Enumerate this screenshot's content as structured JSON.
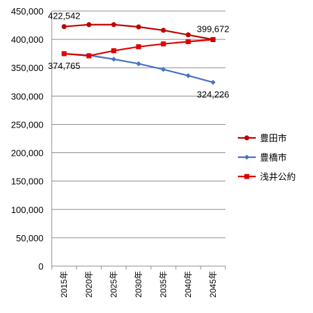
{
  "chart_data": {
    "type": "line",
    "categories": [
      "2015年",
      "2020年",
      "2025年",
      "2030年",
      "2035年",
      "2040年",
      "2045年"
    ],
    "ylim": [
      0,
      450000
    ],
    "yticks": [
      0,
      50000,
      100000,
      150000,
      200000,
      250000,
      300000,
      350000,
      400000,
      450000
    ],
    "ytick_labels": [
      "0",
      "50,000",
      "100,000",
      "150,000",
      "200,000",
      "250,000",
      "300,000",
      "350,000",
      "400,000",
      "450,000"
    ],
    "grid": true,
    "legend_position": "right",
    "series": [
      {
        "name": "豊田市",
        "color": "#C00000",
        "marker": "circle",
        "values": [
          422542,
          426000,
          426000,
          422000,
          416000,
          408000,
          399672
        ]
      },
      {
        "name": "豊橋市",
        "color": "#4472C4",
        "marker": "diamond",
        "values": [
          374765,
          372000,
          365000,
          357000,
          347000,
          336000,
          324226
        ]
      },
      {
        "name": "浅井公約",
        "color": "#E00000",
        "marker": "square",
        "values": [
          374765,
          371000,
          380000,
          387000,
          392000,
          396000,
          399672
        ]
      }
    ],
    "data_labels": [
      {
        "series": 0,
        "index": 0,
        "text": "422,542",
        "anchor": "above"
      },
      {
        "series": 0,
        "index": 6,
        "text": "399,672",
        "anchor": "above"
      },
      {
        "series": 1,
        "index": 0,
        "text": "374,765",
        "anchor": "below"
      },
      {
        "series": 1,
        "index": 6,
        "text": "324,226",
        "anchor": "below"
      }
    ]
  }
}
